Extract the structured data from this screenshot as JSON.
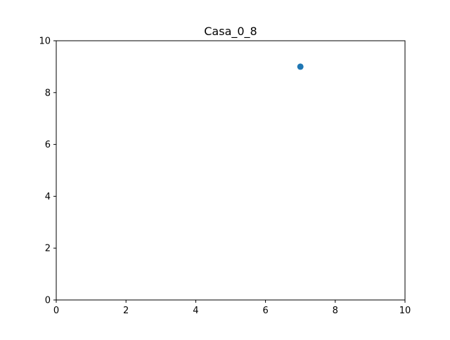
{
  "chart_data": {
    "type": "scatter",
    "title": "Casa_0_8",
    "xlabel": "",
    "ylabel": "",
    "xlim": [
      0,
      10
    ],
    "ylim": [
      0,
      10
    ],
    "xticks": [
      0,
      2,
      4,
      6,
      8,
      10
    ],
    "yticks": [
      0,
      2,
      4,
      6,
      8,
      10
    ],
    "grid": false,
    "series": [
      {
        "color": "#1f77b4",
        "points": [
          {
            "x": 7,
            "y": 9
          }
        ]
      }
    ]
  }
}
